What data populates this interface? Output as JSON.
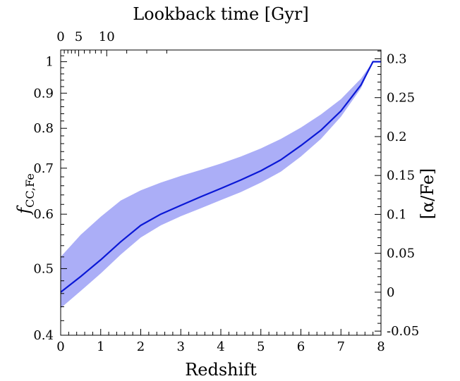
{
  "chart_data": {
    "type": "line",
    "x_axis": {
      "label": "Redshift",
      "range": [
        0,
        8
      ],
      "ticks": [
        0,
        1,
        2,
        3,
        4,
        5,
        6,
        7,
        8
      ],
      "tick_labels": [
        "0",
        "1",
        "2",
        "3",
        "4",
        "5",
        "6",
        "7",
        "8"
      ]
    },
    "top_axis": {
      "label": "Lookback time [Gyr]",
      "ticks": [
        0,
        5,
        10
      ],
      "tick_labels": [
        "0",
        "5",
        "10"
      ]
    },
    "y_axis": {
      "label_main": "f",
      "label_sub": "CC,Fe",
      "scale": "log",
      "range": [
        0.4,
        1.04
      ],
      "ticks": [
        0.4,
        0.5,
        0.6,
        0.7,
        0.8,
        0.9,
        1.0
      ],
      "tick_labels": [
        "0.4",
        "0.5",
        "0.6",
        "0.7",
        "0.8",
        "0.9",
        "1"
      ]
    },
    "right_axis": {
      "label_main": "[α/Fe]",
      "ticks": [
        -0.05,
        0,
        0.05,
        0.1,
        0.15,
        0.2,
        0.25,
        0.3
      ],
      "tick_labels": [
        "-0.05",
        "0",
        "0.05",
        "0.1",
        "0.15",
        "0.2",
        "0.25",
        "0.3"
      ],
      "zero_at_f": 0.462,
      "per_unit_ln": 0.3836
    },
    "series": [
      {
        "x": [
          0,
          0.5,
          1.0,
          1.5,
          2.0,
          2.5,
          3.0,
          3.5,
          4.0,
          4.5,
          5.0,
          5.5,
          6.0,
          6.5,
          7.0,
          7.5,
          7.8,
          8.0
        ],
        "y": [
          0.462,
          0.487,
          0.515,
          0.547,
          0.578,
          0.6,
          0.618,
          0.636,
          0.654,
          0.673,
          0.694,
          0.72,
          0.755,
          0.795,
          0.848,
          0.925,
          1.0,
          1.0
        ],
        "band_upper": [
          0.52,
          0.56,
          0.595,
          0.628,
          0.65,
          0.667,
          0.682,
          0.696,
          0.711,
          0.728,
          0.748,
          0.772,
          0.802,
          0.838,
          0.882,
          0.945,
          1.0,
          1.0
        ],
        "band_lower": [
          0.438,
          0.464,
          0.492,
          0.524,
          0.555,
          0.578,
          0.596,
          0.612,
          0.629,
          0.646,
          0.667,
          0.692,
          0.728,
          0.772,
          0.832,
          0.915,
          1.0,
          1.0
        ]
      }
    ],
    "colors": {
      "line": "#0a18d6",
      "band": "#abaef7"
    }
  }
}
